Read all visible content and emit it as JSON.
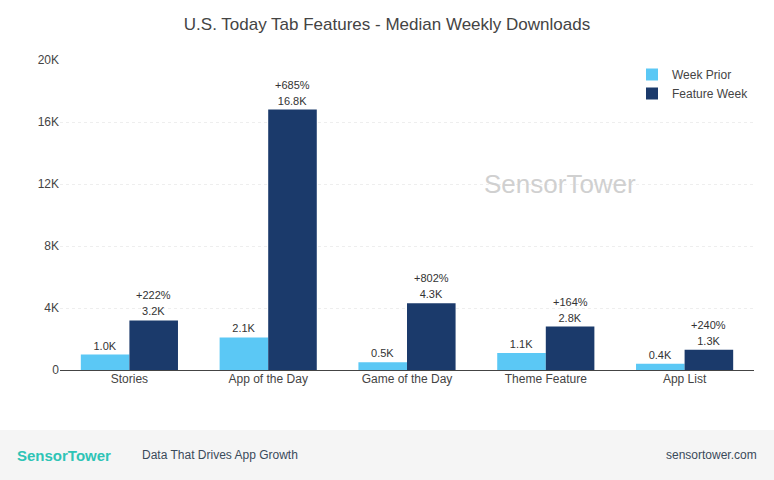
{
  "chart_data": {
    "type": "bar",
    "title": "U.S. Today Tab Features - Median Weekly Downloads",
    "categories": [
      "Stories",
      "App of the Day",
      "Game of the Day",
      "Theme Feature",
      "App List"
    ],
    "series": [
      {
        "name": "Week Prior",
        "color": "#5BC8F5",
        "values": [
          1000,
          2100,
          500,
          1100,
          400
        ],
        "value_labels": [
          "1.0K",
          "2.1K",
          "0.5K",
          "1.1K",
          "0.4K"
        ]
      },
      {
        "name": "Feature Week",
        "color": "#1B3A6B",
        "values": [
          3200,
          16800,
          4300,
          2800,
          1300
        ],
        "value_labels": [
          "3.2K",
          "16.8K",
          "4.3K",
          "2.8K",
          "1.3K"
        ]
      }
    ],
    "data_labels": true,
    "annotations": [
      {
        "text": "+222%",
        "category": "Stories",
        "series": "Feature Week"
      },
      {
        "text": "+685%",
        "category": "App of the Day",
        "series": "Feature Week"
      },
      {
        "text": "+802%",
        "category": "Game of the Day",
        "series": "Feature Week"
      },
      {
        "text": "+164%",
        "category": "Theme Feature",
        "series": "Feature Week"
      },
      {
        "text": "+240%",
        "category": "App List",
        "series": "Feature Week"
      },
      {
        "text": "SensorTower",
        "color": "#d0d0d0"
      },
      {
        "text": "SensorTower",
        "color": "#2ec4b6"
      },
      {
        "text": "Data That Drives App Growth",
        "color": "#3a4a5a"
      },
      {
        "text": "sensortower.com",
        "color": "#3a4a5a"
      }
    ],
    "ylim": [
      0,
      20000
    ],
    "yticks": [
      0,
      {
        "value": 4000,
        "label": "4K"
      },
      {
        "value": 8000,
        "label": "8K"
      },
      {
        "value": 12000,
        "label": "12K"
      },
      {
        "value": 16000,
        "label": "16K"
      },
      {
        "value": 20000,
        "label": "20K"
      }
    ],
    "grid": true,
    "legend": "upper right"
  }
}
